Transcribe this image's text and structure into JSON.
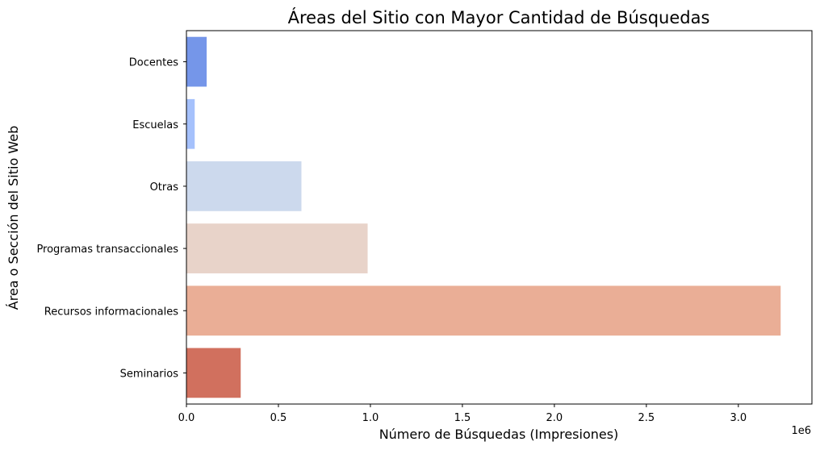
{
  "chart_data": {
    "type": "bar",
    "orientation": "horizontal",
    "title": "Áreas del Sitio con Mayor Cantidad de Búsquedas",
    "xlabel": "Número de Búsquedas (Impresiones)",
    "ylabel": "Área o Sección del Sitio Web",
    "x_offset_label": "1e6",
    "xlim": [
      0,
      3400000
    ],
    "x_ticks": [
      0,
      500000,
      1000000,
      1500000,
      2000000,
      2500000,
      3000000
    ],
    "x_tick_labels": [
      "0.0",
      "0.5",
      "1.0",
      "1.5",
      "2.0",
      "2.5",
      "3.0"
    ],
    "grid": false,
    "legend": "none",
    "categories": [
      "Docentes",
      "Escuelas",
      "Otras",
      "Programas transaccionales",
      "Recursos informacionales",
      "Seminarios"
    ],
    "values": [
      110000,
      45000,
      625000,
      985000,
      3230000,
      295000
    ],
    "colors": [
      "#7596e9",
      "#a5c1fc",
      "#ccd9ed",
      "#e8d3c9",
      "#eaae96",
      "#d1705e"
    ]
  }
}
